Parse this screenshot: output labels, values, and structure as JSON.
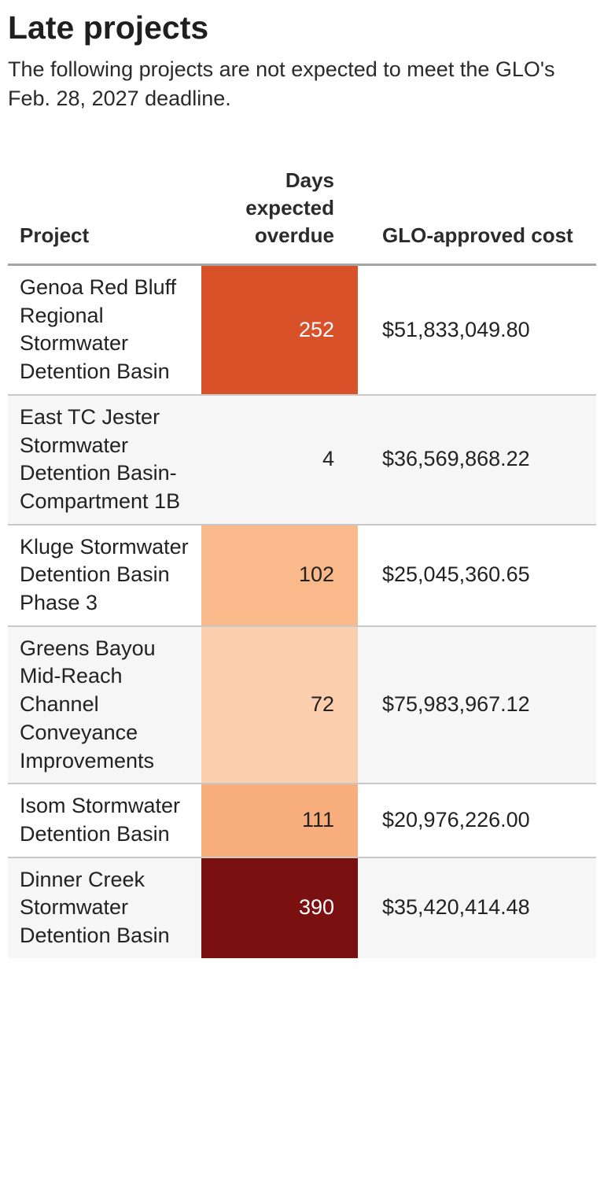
{
  "title": "Late projects",
  "subtitle": "The following projects are not expected to meet the GLO's Feb. 28, 2027 deadline.",
  "colors": {
    "scale": [
      {
        "max": 10,
        "bg": "#f6f6f6",
        "fg": "#222222"
      },
      {
        "max": 80,
        "bg": "#fbcfad",
        "fg": "#222222"
      },
      {
        "max": 106,
        "bg": "#f9b98a",
        "fg": "#222222"
      },
      {
        "max": 150,
        "bg": "#f7ae7c",
        "fg": "#222222"
      },
      {
        "max": 300,
        "bg": "#d95128",
        "fg": "#ffffff"
      },
      {
        "max": 100000,
        "bg": "#7a1110",
        "fg": "#ffffff"
      }
    ]
  },
  "chart_data": {
    "type": "table",
    "columns": [
      "Project",
      "Days expected overdue",
      "GLO-approved cost"
    ],
    "rows": [
      {
        "project": "Genoa Red Bluff Regional Stormwater Detention Basin",
        "days": 252,
        "cost": "$51,833,049.80"
      },
      {
        "project": "East TC Jester Stormwater Detention Basin-Compartment 1B",
        "days": 4,
        "cost": "$36,569,868.22"
      },
      {
        "project": "Kluge Stormwater Detention Basin Phase 3",
        "days": 102,
        "cost": "$25,045,360.65"
      },
      {
        "project": "Greens Bayou Mid-Reach Channel Conveyance Improvements",
        "days": 72,
        "cost": "$75,983,967.12"
      },
      {
        "project": "Isom Stormwater Detention Basin",
        "days": 111,
        "cost": "$20,976,226.00"
      },
      {
        "project": "Dinner Creek Stormwater Detention Basin",
        "days": 390,
        "cost": "$35,420,414.48"
      }
    ]
  }
}
